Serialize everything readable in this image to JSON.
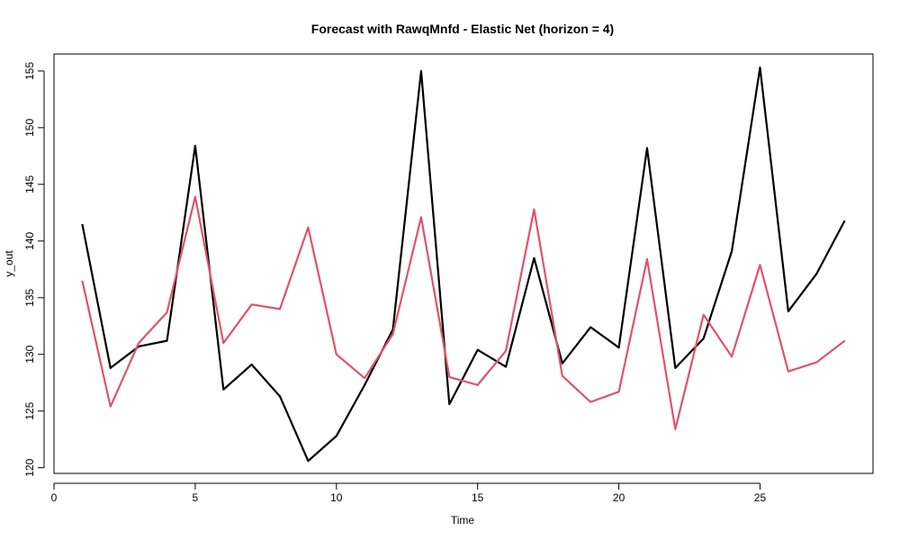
{
  "chart_data": {
    "type": "line",
    "title": "Forecast with RawqMnfd - Elastic Net (horizon = 4)",
    "xlabel": "Time",
    "ylabel": "y_out",
    "xlim": [
      0,
      29
    ],
    "ylim": [
      119.5,
      156.5
    ],
    "x_ticks": [
      0,
      5,
      10,
      15,
      20,
      25
    ],
    "y_ticks": [
      120,
      125,
      130,
      135,
      140,
      145,
      150,
      155
    ],
    "grid": false,
    "legend": "none",
    "x": [
      1,
      2,
      3,
      4,
      5,
      6,
      7,
      8,
      9,
      10,
      11,
      12,
      13,
      14,
      15,
      16,
      17,
      18,
      19,
      20,
      21,
      22,
      23,
      24,
      25,
      26,
      27,
      28
    ],
    "series": [
      {
        "color": "#000000",
        "values": [
          141.5,
          128.8,
          130.7,
          131.2,
          148.4,
          126.9,
          129.1,
          126.3,
          120.6,
          122.8,
          127.3,
          132.2,
          155.0,
          125.6,
          130.4,
          128.9,
          138.5,
          129.2,
          132.4,
          130.6,
          148.2,
          128.8,
          131.4,
          139.1,
          155.3,
          133.8,
          137.1,
          141.8
        ]
      },
      {
        "color": "#DF536B",
        "values": [
          136.5,
          125.4,
          131.0,
          133.7,
          143.9,
          131.0,
          134.4,
          134.0,
          141.2,
          130.0,
          127.9,
          131.8,
          142.1,
          128.0,
          127.3,
          130.3,
          142.8,
          128.1,
          125.8,
          126.7,
          138.4,
          123.4,
          133.5,
          129.8,
          137.9,
          128.5,
          129.3,
          131.2
        ]
      }
    ]
  }
}
